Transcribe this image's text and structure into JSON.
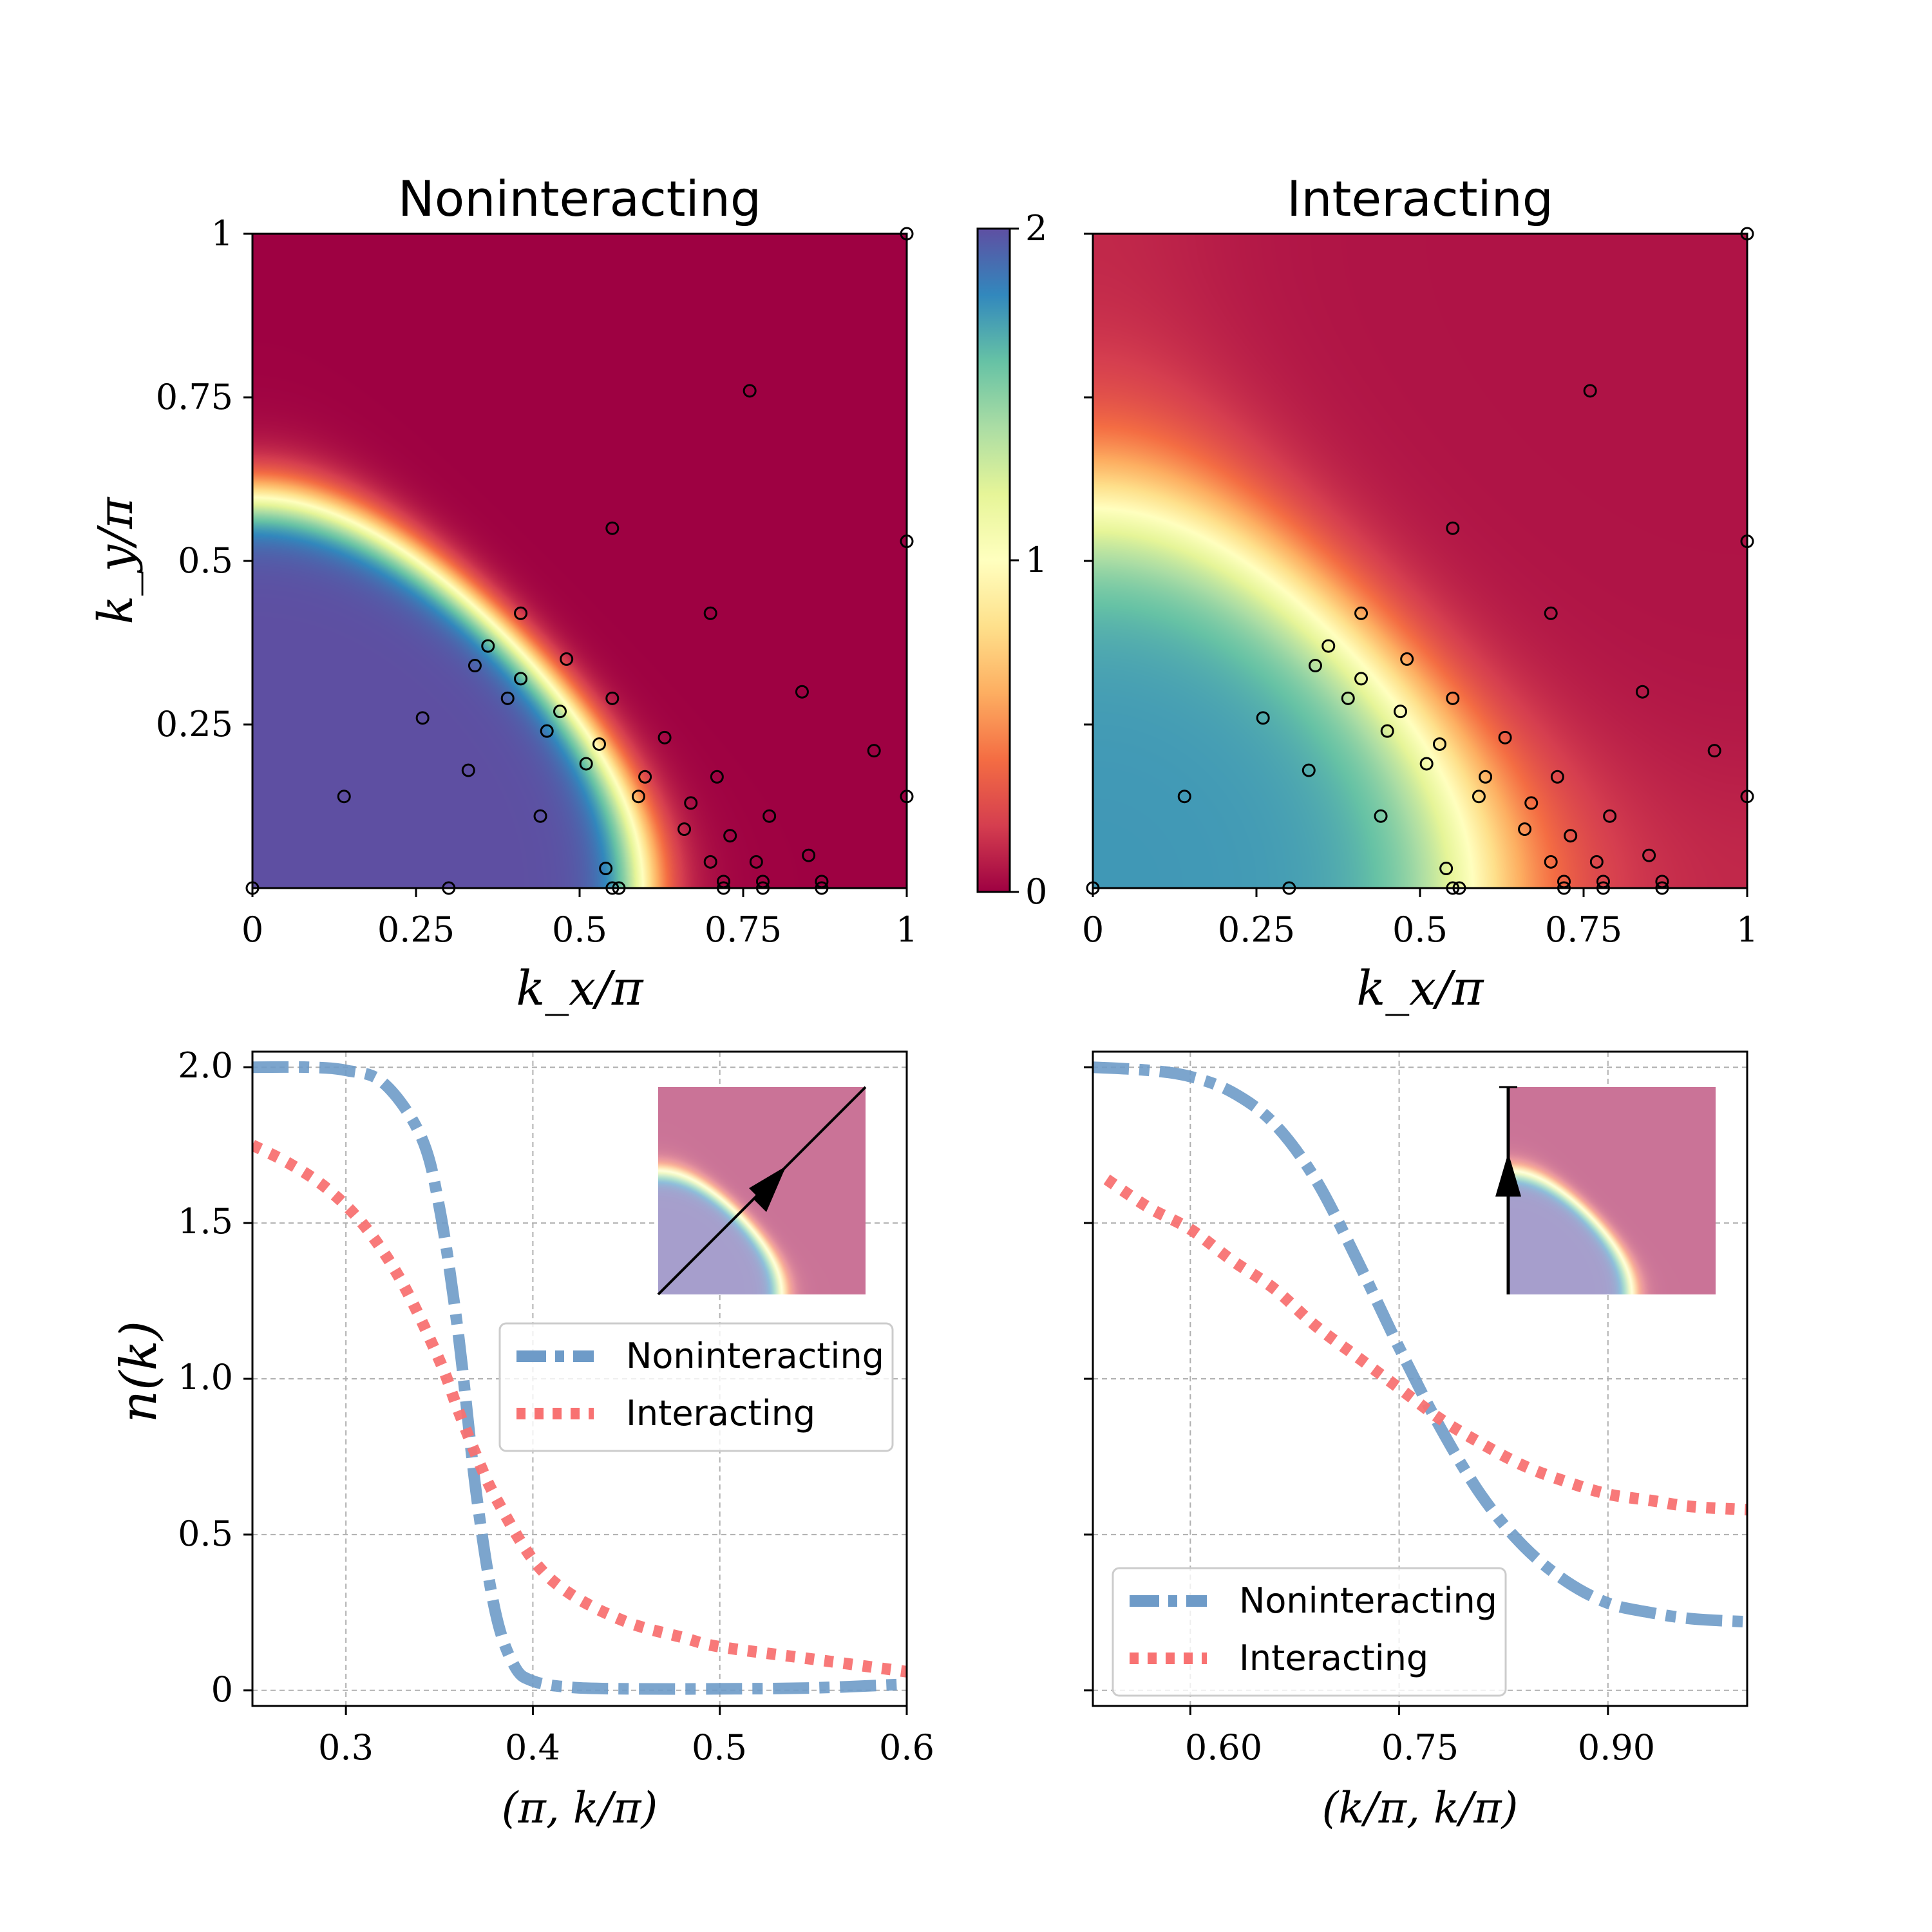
{
  "chart_data": [
    {
      "type": "heatmap",
      "title": "Noninteracting",
      "xlabel": "k_x/π",
      "ylabel": "k_y/π",
      "xlim": [
        0,
        1
      ],
      "ylim": [
        0,
        1
      ],
      "xticks": [
        "0",
        "0.25",
        "0.5",
        "0.75",
        "1"
      ],
      "yticks": [
        "0.25",
        "0.5",
        "0.75",
        "1"
      ],
      "model": {
        "fermi_offset": 0.7,
        "width": 0.08
      },
      "value_range": [
        0,
        2
      ],
      "colormap": "Spectral",
      "points_x": [
        0,
        0.14,
        0.26,
        0.3,
        0.34,
        0.36,
        0.33,
        0.39,
        0.41,
        0.41,
        0.44,
        0.45,
        0.47,
        0.48,
        0.51,
        0.53,
        0.54,
        0.55,
        0.55,
        0.55,
        0.56,
        0.59,
        0.6,
        0.63,
        0.66,
        0.67,
        0.7,
        0.7,
        0.71,
        0.72,
        0.72,
        0.73,
        0.76,
        0.77,
        0.78,
        0.78,
        0.79,
        0.84,
        0.85,
        0.87,
        0.87,
        0.95,
        1.0,
        1.0,
        1.0
      ],
      "points_y": [
        0,
        0.14,
        0.26,
        0,
        0.34,
        0.37,
        0.18,
        0.29,
        0.32,
        0.42,
        0.11,
        0.24,
        0.27,
        0.35,
        0.19,
        0.22,
        0.03,
        0.29,
        0.55,
        0,
        0,
        0.14,
        0.17,
        0.23,
        0.09,
        0.13,
        0.42,
        0.04,
        0.17,
        0.01,
        0,
        0.08,
        0.76,
        0.04,
        0.01,
        0,
        0.11,
        0.3,
        0.05,
        0.01,
        0,
        0.21,
        1.0,
        0.53,
        0.14
      ]
    },
    {
      "type": "heatmap",
      "title": "Interacting",
      "xlabel": "k_x/π",
      "xlim": [
        0,
        1
      ],
      "ylim": [
        0,
        1
      ],
      "xticks": [
        "0",
        "0.25",
        "0.5",
        "0.75",
        "1"
      ],
      "model": {
        "fermi_offset": 0.7,
        "width": 0.22,
        "low_max": 1.75,
        "high_min": 0.06
      },
      "value_range": [
        0,
        2
      ],
      "colormap": "Spectral"
    },
    {
      "type": "colorbar",
      "range": [
        0,
        2
      ],
      "ticks": [
        "0",
        "1",
        "2"
      ]
    },
    {
      "type": "line",
      "xlabel": "(π, k/π)",
      "ylabel": "n(k)",
      "xlim": [
        0.25,
        0.6
      ],
      "ylim": [
        -0.05,
        2.05
      ],
      "xticks": [
        "0.3",
        "0.4",
        "0.5",
        "0.6"
      ],
      "yticks": [
        "0",
        "0.5",
        "1.0",
        "1.5",
        "2.0"
      ],
      "grid": true,
      "legend": "center-right",
      "series": [
        {
          "name": "Noninteracting",
          "color": "#6e9bc8",
          "style": "dashdot",
          "x": [
            0.25,
            0.28,
            0.3,
            0.32,
            0.34,
            0.35,
            0.36,
            0.37,
            0.38,
            0.39,
            0.4,
            0.42,
            0.45,
            0.5,
            0.55,
            0.6
          ],
          "y": [
            2.0,
            2.0,
            1.99,
            1.95,
            1.78,
            1.55,
            1.15,
            0.62,
            0.25,
            0.08,
            0.03,
            0.01,
            0.005,
            0.005,
            0.008,
            0.02
          ]
        },
        {
          "name": "Interacting",
          "color": "#f87272",
          "style": "dotted",
          "x": [
            0.25,
            0.27,
            0.29,
            0.31,
            0.33,
            0.35,
            0.36,
            0.37,
            0.38,
            0.4,
            0.42,
            0.45,
            0.48,
            0.5,
            0.55,
            0.6
          ],
          "y": [
            1.75,
            1.69,
            1.61,
            1.49,
            1.31,
            1.06,
            0.9,
            0.75,
            0.62,
            0.42,
            0.31,
            0.22,
            0.17,
            0.14,
            0.1,
            0.06
          ]
        }
      ]
    },
    {
      "type": "line",
      "xlabel": "(k/π, k/π)",
      "xlim": [
        0.53,
        1.0
      ],
      "ylim": [
        -0.05,
        2.05
      ],
      "xticks": [
        "0.60",
        "0.75",
        "0.90"
      ],
      "grid": true,
      "legend": "bottom-left",
      "series": [
        {
          "name": "Noninteracting",
          "color": "#6e9bc8",
          "style": "dashdot",
          "x": [
            0.53,
            0.57,
            0.6,
            0.63,
            0.66,
            0.69,
            0.72,
            0.75,
            0.78,
            0.81,
            0.84,
            0.87,
            0.9,
            0.93,
            0.96,
            1.0
          ],
          "y": [
            2.0,
            1.99,
            1.97,
            1.92,
            1.82,
            1.64,
            1.38,
            1.1,
            0.84,
            0.62,
            0.46,
            0.35,
            0.28,
            0.25,
            0.23,
            0.22
          ]
        },
        {
          "name": "Interacting",
          "color": "#f87272",
          "style": "dotted",
          "x": [
            0.54,
            0.57,
            0.6,
            0.63,
            0.66,
            0.69,
            0.72,
            0.75,
            0.78,
            0.81,
            0.84,
            0.87,
            0.9,
            0.93,
            0.96,
            1.0
          ],
          "y": [
            1.64,
            1.55,
            1.48,
            1.38,
            1.29,
            1.17,
            1.07,
            0.97,
            0.87,
            0.79,
            0.72,
            0.67,
            0.63,
            0.61,
            0.59,
            0.58
          ]
        }
      ]
    }
  ],
  "labels": {
    "title_left": "Noninteracting",
    "title_right": "Interacting",
    "legend_nonint": "Noninteracting",
    "legend_int": "Interacting",
    "cb_0": "0",
    "cb_1": "1",
    "cb_2": "2",
    "xt0": "0",
    "xt1": "0.25",
    "xt2": "0.5",
    "xt3": "0.75",
    "xt4": "1",
    "yt1": "0.25",
    "yt2": "0.5",
    "yt3": "0.75",
    "yt4": "1",
    "b1x1": "0.3",
    "b1x2": "0.4",
    "b1x3": "0.5",
    "b1x4": "0.6",
    "b1y0": "0",
    "b1y1": "0.5",
    "b1y2": "1.0",
    "b1y3": "1.5",
    "b1y4": "2.0",
    "b2x1": "0.60",
    "b2x2": "0.75",
    "b2x3": "0.90"
  },
  "colors": {
    "nonint": "#6e9bc8",
    "int": "#f87272"
  }
}
